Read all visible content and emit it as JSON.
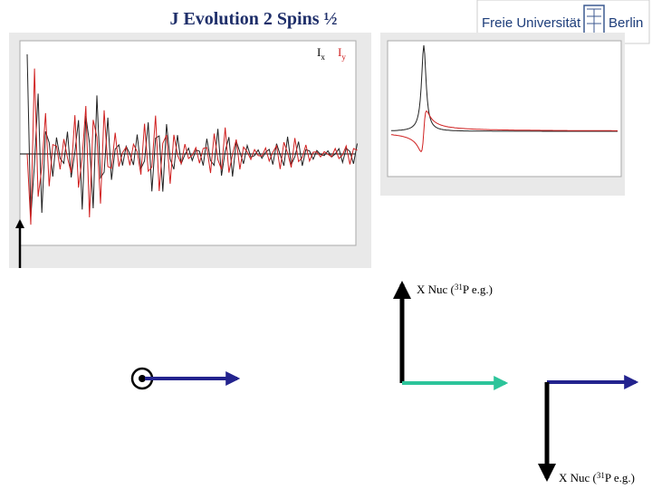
{
  "header": {
    "title": "J Evolution 2 Spins ½"
  },
  "logo": {
    "name": "Freie Universität",
    "city": "Berlin"
  },
  "legend": {
    "ix": {
      "main": "I",
      "sub": "x"
    },
    "iy": {
      "main": "I",
      "sub": "y"
    }
  },
  "labels": [
    {
      "pre": "X Nuc (",
      "sup": "31",
      "post": "P  e.g.)"
    },
    {
      "pre": "X Nuc (",
      "sup": "31",
      "post": "P  e.g.)"
    }
  ]
}
